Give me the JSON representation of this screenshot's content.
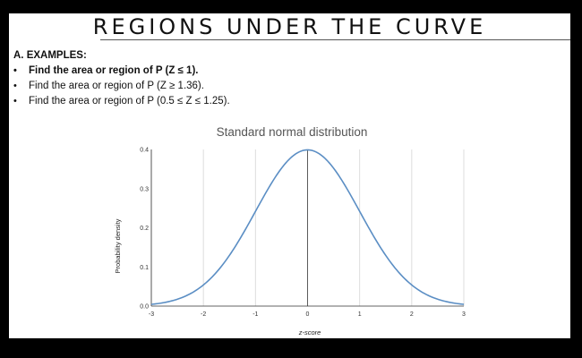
{
  "slide": {
    "title": "REGIONS UNDER THE CURVE",
    "section_heading": "A. EXAMPLES:",
    "bullet_symbol": "•",
    "examples": [
      {
        "text": "Find the area or region of P (Z ≤ 1).",
        "bold": true
      },
      {
        "text": "Find the area or region of P (Z ≥ 1.36).",
        "bold": false
      },
      {
        "text": "Find the area or region of P (0.5 ≤ Z ≤ 1.25).",
        "bold": false
      }
    ]
  },
  "chart_data": {
    "type": "line",
    "title": "Standard normal distribution",
    "xlabel": "z-score",
    "ylabel": "Probability density",
    "x_ticks": [
      "-3",
      "-2",
      "-1",
      "0",
      "1",
      "2",
      "3"
    ],
    "y_ticks": [
      "0.0",
      "0.1",
      "0.2",
      "0.3",
      "0.4"
    ],
    "xlim": [
      -3,
      3
    ],
    "ylim": [
      0,
      0.4
    ],
    "grid": "vertical",
    "series": [
      {
        "x": [
          -3,
          -2.5,
          -2,
          -1.5,
          -1,
          -0.5,
          0,
          0.5,
          1,
          1.5,
          2,
          2.5,
          3
        ],
        "values": [
          0.0044,
          0.0175,
          0.054,
          0.1295,
          0.242,
          0.3521,
          0.3989,
          0.3521,
          0.242,
          0.1295,
          0.054,
          0.0175,
          0.0044
        ],
        "color": "#5b8ec4"
      }
    ],
    "reference_line_x": 0
  },
  "colors": {
    "background": "#000000",
    "slide": "#ffffff",
    "curve": "#5b8ec4",
    "grid": "#dddddd",
    "axis": "#333333"
  }
}
